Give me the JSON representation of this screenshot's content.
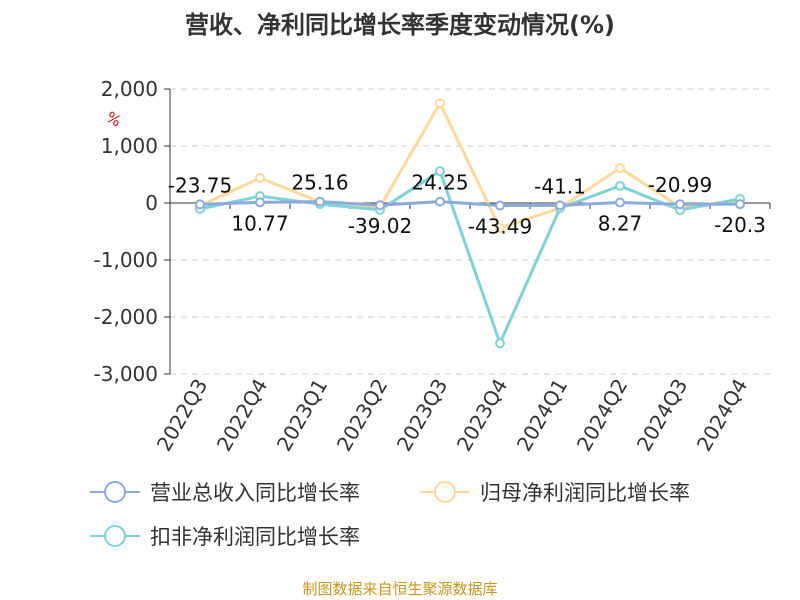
{
  "chart_data": {
    "type": "line",
    "title": "营收、净利同比增长率季度变动情况(%)",
    "ylabel": "%",
    "ylim": [
      -3000,
      2000
    ],
    "yticks": [
      2000,
      1000,
      0,
      -1000,
      -2000,
      -3000
    ],
    "ytick_labels": [
      "2,000",
      "1,000",
      "0",
      "-1,000",
      "-2,000",
      "-3,000"
    ],
    "grid": true,
    "legend_position": "bottom",
    "categories": [
      "2022Q3",
      "2022Q4",
      "2023Q1",
      "2023Q2",
      "2023Q3",
      "2023Q4",
      "2024Q1",
      "2024Q2",
      "2024Q3",
      "2024Q4"
    ],
    "series": [
      {
        "name": "营业总收入同比增长率",
        "color": "#8eaadb",
        "values": [
          -23.75,
          10.77,
          25.16,
          -39.02,
          24.25,
          -43.49,
          -41.1,
          8.27,
          -20.99,
          -20.3
        ],
        "labels": [
          "-23.75",
          "10.77",
          "25.16",
          "-39.02",
          "24.25",
          "-43.49",
          "-41.1",
          "8.27",
          "-20.99",
          "-20.3"
        ]
      },
      {
        "name": "归母净利润同比增长率",
        "color": "#fdd99b",
        "values": [
          -50,
          440,
          20,
          -70,
          1750,
          -440,
          -90,
          615,
          -70,
          40
        ]
      },
      {
        "name": "扣非净利润同比增长率",
        "color": "#7fd3d8",
        "values": [
          -105,
          120,
          -20,
          -120,
          560,
          -2460,
          -90,
          300,
          -125,
          70
        ]
      }
    ]
  },
  "source": "制图数据来自恒生聚源数据库"
}
